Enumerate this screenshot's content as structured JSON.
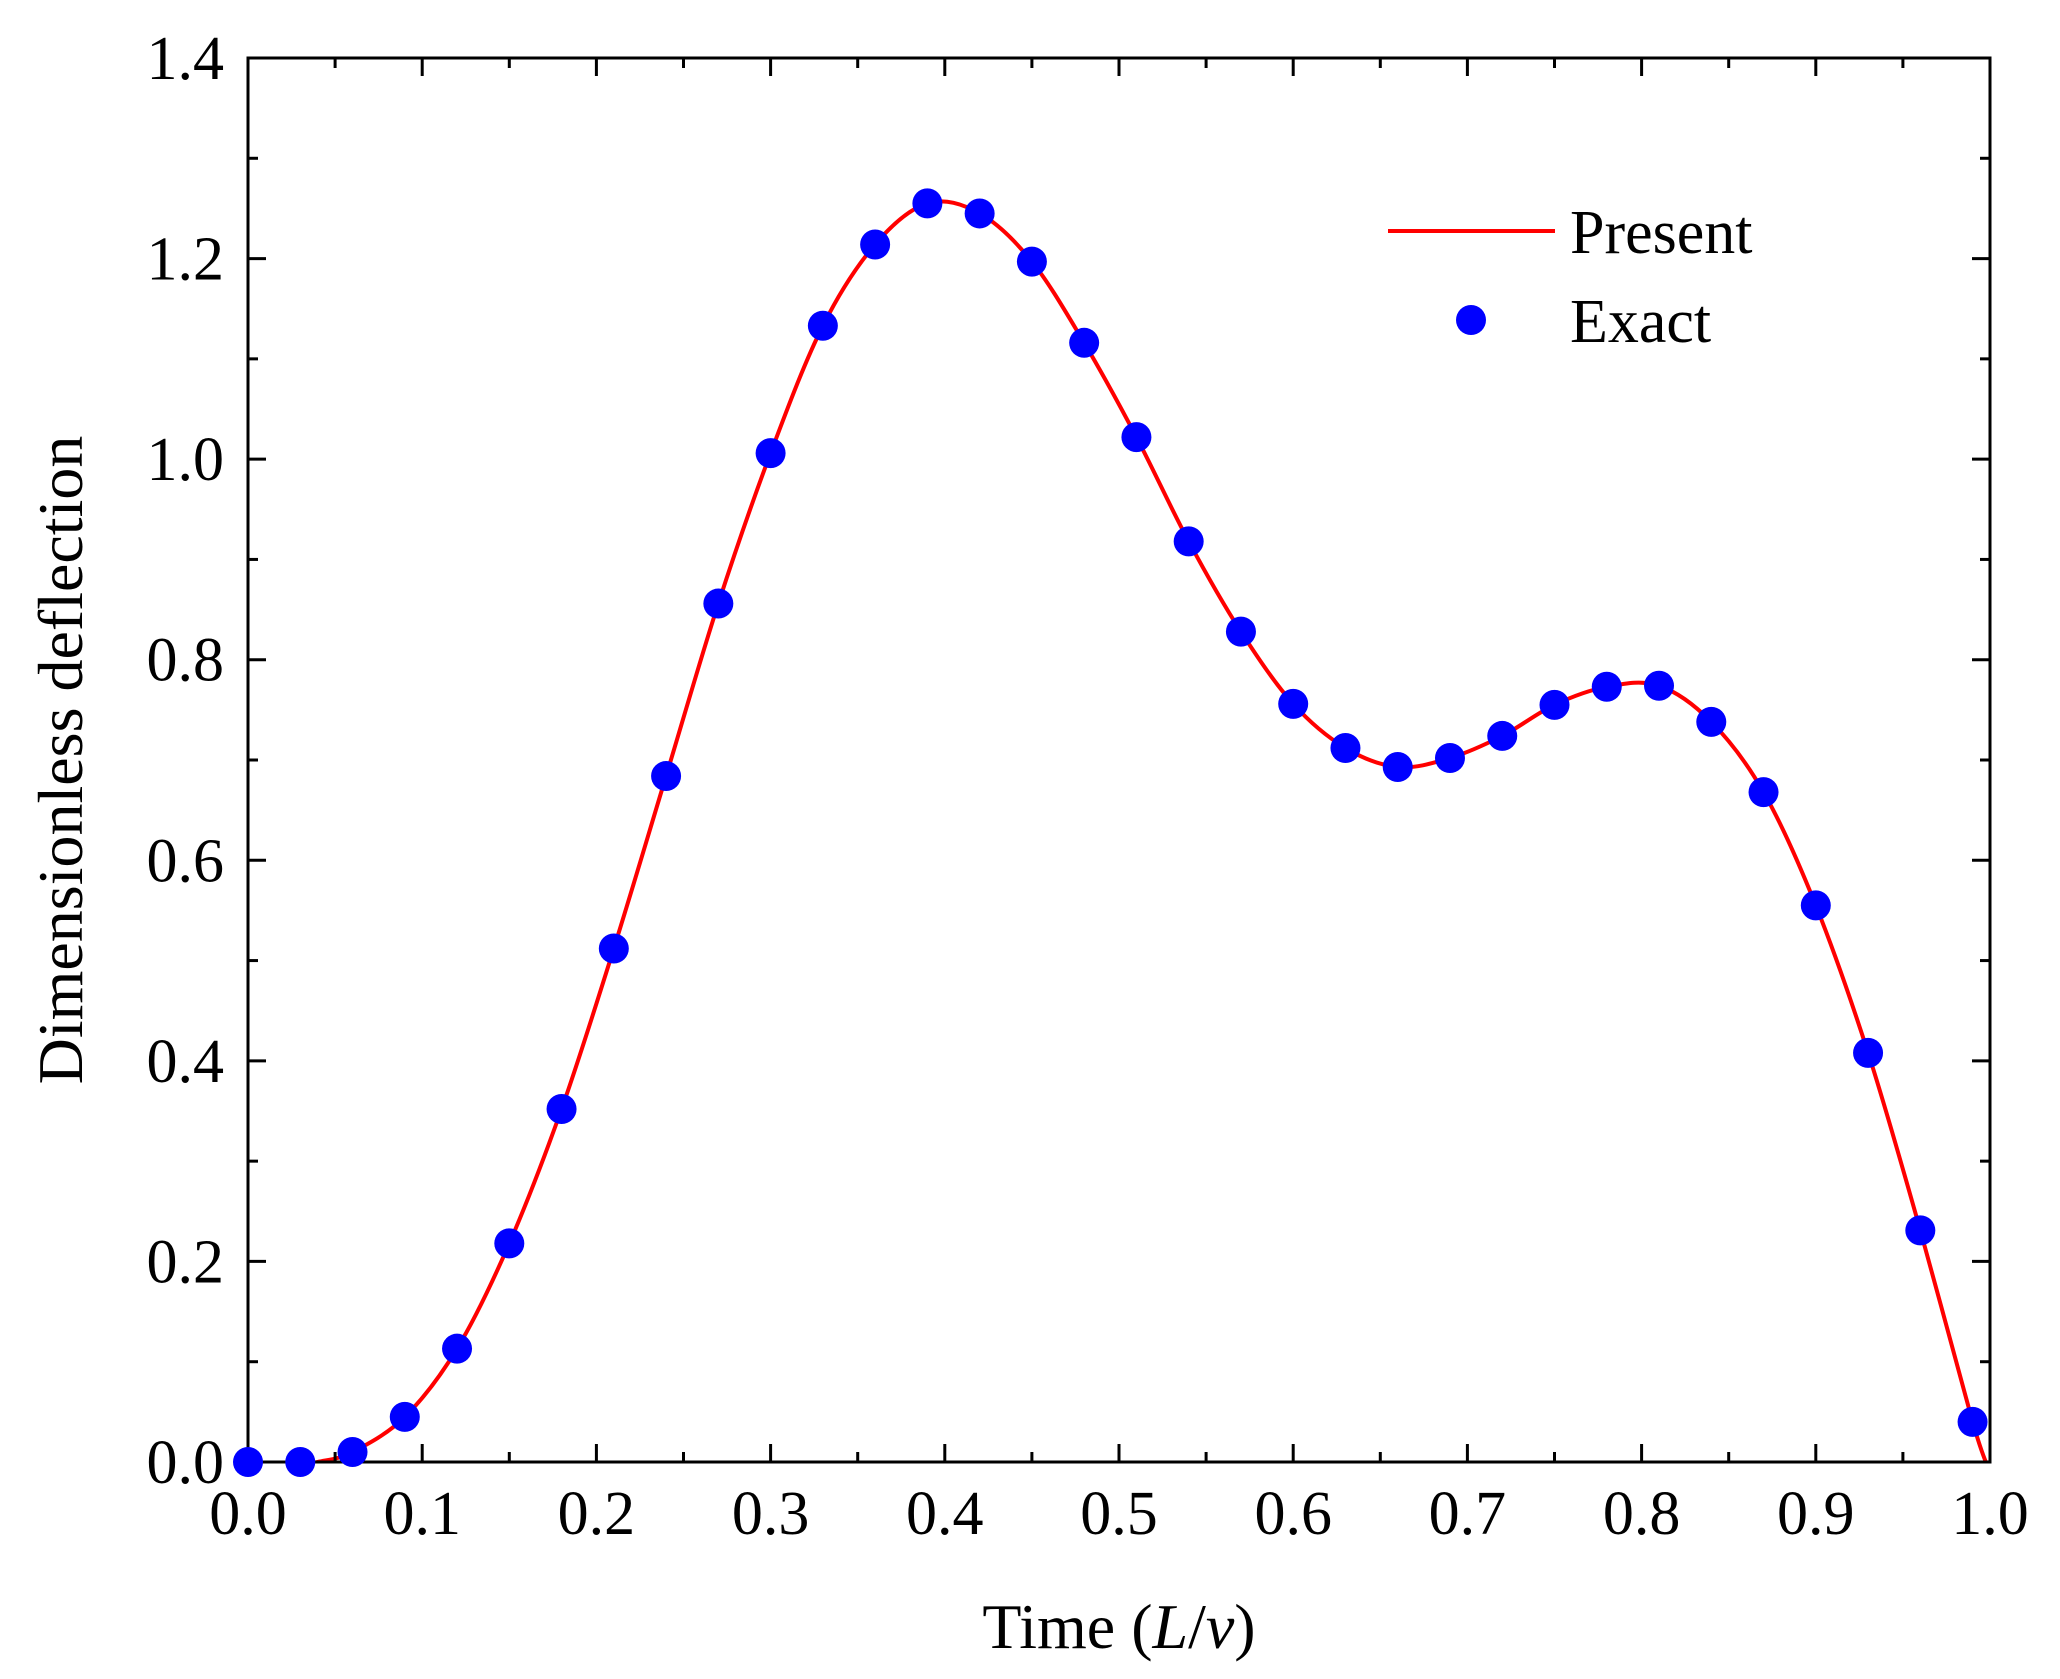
{
  "chart_data": {
    "type": "line",
    "xlabel": "Time",
    "xlabel_unit_open": " (",
    "xlabel_unit_L": "L",
    "xlabel_unit_slash": "/",
    "xlabel_unit_v": "v",
    "xlabel_unit_close": ")",
    "ylabel": "Dimensionless deflection",
    "xlim": [
      0.0,
      1.0
    ],
    "ylim": [
      0.0,
      1.4
    ],
    "xticks": [
      0.0,
      0.1,
      0.2,
      0.3,
      0.4,
      0.5,
      0.6,
      0.7,
      0.8,
      0.9,
      1.0
    ],
    "xtick_labels": [
      "0.0",
      "0.1",
      "0.2",
      "0.3",
      "0.4",
      "0.5",
      "0.6",
      "0.7",
      "0.8",
      "0.9",
      "1.0"
    ],
    "yticks": [
      0.0,
      0.2,
      0.4,
      0.6,
      0.8,
      1.0,
      1.2,
      1.4
    ],
    "ytick_labels": [
      "0.0",
      "0.2",
      "0.4",
      "0.6",
      "0.8",
      "1.0",
      "1.2",
      "1.4"
    ],
    "grid": false,
    "legend_position": "top-right",
    "series": [
      {
        "name": "Present",
        "style": "line",
        "color": "#ff0000",
        "x": [
          0.0,
          0.02,
          0.04,
          0.06,
          0.09,
          0.12,
          0.15,
          0.18,
          0.21,
          0.24,
          0.27,
          0.3,
          0.33,
          0.36,
          0.39,
          0.42,
          0.45,
          0.48,
          0.51,
          0.54,
          0.57,
          0.6,
          0.63,
          0.66,
          0.69,
          0.72,
          0.75,
          0.78,
          0.81,
          0.84,
          0.87,
          0.9,
          0.93,
          0.96,
          0.99,
          1.0
        ],
        "y": [
          0.0,
          -0.005,
          0.0,
          0.01,
          0.045,
          0.113,
          0.218,
          0.352,
          0.512,
          0.684,
          0.856,
          1.006,
          1.133,
          1.214,
          1.255,
          1.245,
          1.197,
          1.116,
          1.022,
          0.918,
          0.828,
          0.756,
          0.712,
          0.693,
          0.702,
          0.724,
          0.755,
          0.773,
          0.774,
          0.738,
          0.668,
          0.555,
          0.408,
          0.231,
          0.04,
          -0.01
        ]
      },
      {
        "name": "Exact",
        "style": "marker",
        "color": "#0000ff",
        "x": [
          0.0,
          0.03,
          0.06,
          0.09,
          0.12,
          0.15,
          0.18,
          0.21,
          0.24,
          0.27,
          0.3,
          0.33,
          0.36,
          0.39,
          0.42,
          0.45,
          0.48,
          0.51,
          0.54,
          0.57,
          0.6,
          0.63,
          0.66,
          0.69,
          0.72,
          0.75,
          0.78,
          0.81,
          0.84,
          0.87,
          0.9,
          0.93,
          0.96,
          0.99
        ],
        "y": [
          0.0,
          0.0,
          0.01,
          0.045,
          0.113,
          0.218,
          0.352,
          0.512,
          0.684,
          0.856,
          1.006,
          1.133,
          1.214,
          1.255,
          1.245,
          1.197,
          1.116,
          1.022,
          0.918,
          0.828,
          0.756,
          0.712,
          0.693,
          0.702,
          0.724,
          0.755,
          0.773,
          0.774,
          0.738,
          0.668,
          0.555,
          0.408,
          0.231,
          0.04
        ]
      }
    ]
  }
}
